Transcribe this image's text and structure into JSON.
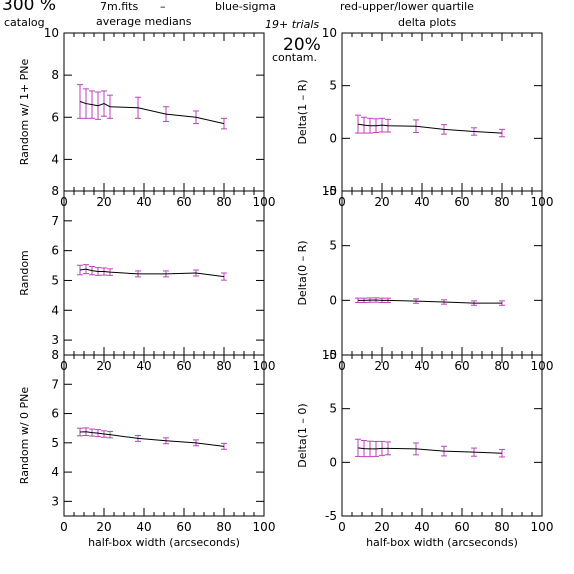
{
  "header": {
    "percent": "300 %",
    "catalog": "catalog",
    "file": "7m.fits",
    "dash": "–",
    "blue": "blue-sigma",
    "red": "red-upper/lower quartile",
    "trials": "19+ trials",
    "avg": "average medians",
    "delta": "delta plots",
    "contam_pct": "20%",
    "contam": "contam.",
    "blue_color": "#3a3aff",
    "red_color": "#ff4d4d"
  },
  "chart_data": [
    {
      "id": "left-top",
      "type": "line",
      "ylabel": "Random w/ 1+ PNe",
      "xlabel": "",
      "xlim": [
        0,
        100
      ],
      "ylim": [
        2.5,
        10
      ],
      "x_ticks": [
        0,
        20,
        40,
        60,
        80,
        100
      ],
      "y_ticks": [
        4,
        6,
        8,
        10
      ],
      "show_x_ticklabels": true,
      "x": [
        8,
        11,
        14,
        17,
        20,
        23,
        37,
        51,
        66,
        80
      ],
      "y": [
        6.75,
        6.65,
        6.6,
        6.55,
        6.65,
        6.5,
        6.45,
        6.15,
        6.0,
        5.7
      ],
      "err": [
        0.8,
        0.7,
        0.65,
        0.65,
        0.6,
        0.55,
        0.5,
        0.35,
        0.3,
        0.25
      ]
    },
    {
      "id": "left-middle",
      "type": "line",
      "ylabel": "Random",
      "xlabel": "",
      "xlim": [
        0,
        100
      ],
      "ylim": [
        2.5,
        8
      ],
      "x_ticks": [
        0,
        20,
        40,
        60,
        80,
        100
      ],
      "y_ticks": [
        3,
        4,
        5,
        6,
        7,
        8
      ],
      "show_x_ticklabels": true,
      "x": [
        8,
        11,
        14,
        17,
        20,
        23,
        37,
        51,
        66,
        80
      ],
      "y": [
        5.35,
        5.38,
        5.33,
        5.3,
        5.3,
        5.28,
        5.22,
        5.22,
        5.25,
        5.13
      ],
      "err": [
        0.16,
        0.15,
        0.14,
        0.13,
        0.12,
        0.11,
        0.1,
        0.1,
        0.1,
        0.12
      ]
    },
    {
      "id": "left-bottom",
      "type": "line",
      "ylabel": "Random w/ 0 PNe",
      "xlabel": "half-box width (arcseconds)",
      "xlim": [
        0,
        100
      ],
      "ylim": [
        2.5,
        8
      ],
      "x_ticks": [
        0,
        20,
        40,
        60,
        80,
        100
      ],
      "y_ticks": [
        3,
        4,
        5,
        6,
        7,
        8
      ],
      "show_x_ticklabels": true,
      "x": [
        8,
        11,
        14,
        17,
        20,
        23,
        37,
        51,
        66,
        80
      ],
      "y": [
        5.37,
        5.38,
        5.35,
        5.33,
        5.3,
        5.28,
        5.15,
        5.07,
        5.0,
        4.88
      ],
      "err": [
        0.13,
        0.13,
        0.12,
        0.12,
        0.11,
        0.11,
        0.1,
        0.1,
        0.1,
        0.1
      ]
    },
    {
      "id": "right-top",
      "type": "line",
      "ylabel": "Delta(1 – R)",
      "xlabel": "",
      "xlim": [
        0,
        100
      ],
      "ylim": [
        -5,
        10
      ],
      "x_ticks": [
        0,
        20,
        40,
        60,
        80,
        100
      ],
      "y_ticks": [
        -5,
        0,
        5,
        10
      ],
      "show_x_ticklabels": true,
      "x": [
        8,
        11,
        14,
        17,
        20,
        23,
        37,
        51,
        66,
        80
      ],
      "y": [
        1.35,
        1.25,
        1.2,
        1.2,
        1.25,
        1.2,
        1.15,
        0.85,
        0.65,
        0.5
      ],
      "err": [
        0.85,
        0.75,
        0.7,
        0.65,
        0.65,
        0.6,
        0.6,
        0.45,
        0.35,
        0.35
      ]
    },
    {
      "id": "right-middle",
      "type": "line",
      "ylabel": "Delta(0 – R)",
      "xlabel": "",
      "xlim": [
        0,
        100
      ],
      "ylim": [
        -5,
        10
      ],
      "x_ticks": [
        0,
        20,
        40,
        60,
        80,
        100
      ],
      "y_ticks": [
        -5,
        0,
        5,
        10
      ],
      "show_x_ticklabels": true,
      "x": [
        8,
        11,
        14,
        17,
        20,
        23,
        37,
        51,
        66,
        80
      ],
      "y": [
        0.0,
        0.0,
        0.02,
        0.03,
        0.0,
        0.0,
        -0.07,
        -0.15,
        -0.25,
        -0.25
      ],
      "err": [
        0.2,
        0.2,
        0.2,
        0.2,
        0.2,
        0.2,
        0.2,
        0.2,
        0.2,
        0.2
      ]
    },
    {
      "id": "right-bottom",
      "type": "line",
      "ylabel": "Delta(1 – 0)",
      "xlabel": "half-box width (arcseconds)",
      "xlim": [
        0,
        100
      ],
      "ylim": [
        -5,
        10
      ],
      "x_ticks": [
        0,
        20,
        40,
        60,
        80,
        100
      ],
      "y_ticks": [
        -5,
        0,
        5,
        10
      ],
      "show_x_ticklabels": true,
      "x": [
        8,
        11,
        14,
        17,
        20,
        23,
        37,
        51,
        66,
        80
      ],
      "y": [
        1.35,
        1.28,
        1.25,
        1.25,
        1.3,
        1.3,
        1.25,
        1.05,
        0.95,
        0.85
      ],
      "err": [
        0.8,
        0.75,
        0.72,
        0.7,
        0.65,
        0.6,
        0.55,
        0.45,
        0.38,
        0.35
      ]
    }
  ]
}
